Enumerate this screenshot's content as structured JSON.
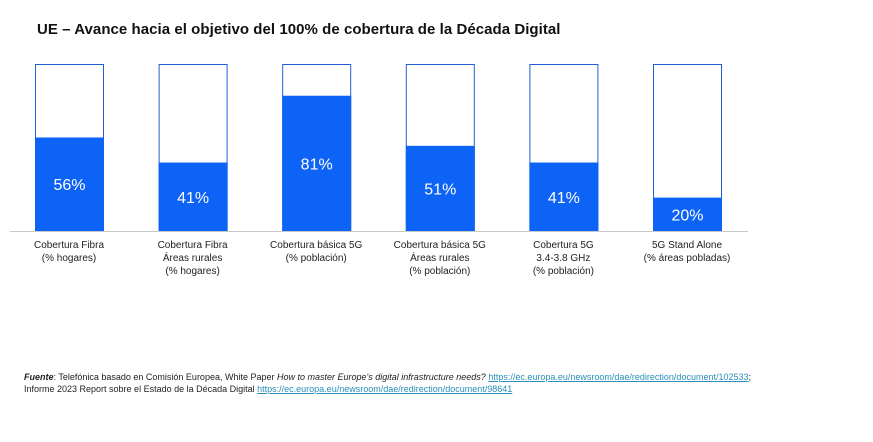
{
  "chart_data": {
    "type": "bar",
    "title": "UE – Avance hacia el objetivo del 100% de cobertura de la Década Digital",
    "categories": [
      [
        "Cobertura Fibra",
        "(% hogares)"
      ],
      [
        "Cobertura Fibra",
        "Áreas rurales",
        "(% hogares)"
      ],
      [
        "Cobertura básica 5G",
        "(% población)"
      ],
      [
        "Cobertura básica 5G",
        "Áreas rurales",
        "(% población)"
      ],
      [
        "Cobertura 5G",
        "3.4-3.8 GHz",
        "(% población)"
      ],
      [
        "5G Stand Alone",
        "(% áreas pobladas)"
      ]
    ],
    "values": [
      56,
      41,
      81,
      51,
      41,
      20
    ],
    "value_labels": [
      "56%",
      "41%",
      "81%",
      "51%",
      "41%",
      "20%"
    ],
    "ylim": [
      0,
      100
    ],
    "target": 100,
    "colors": {
      "fill": "#0d63f5",
      "outline": "#1f5fd6"
    }
  },
  "footer": {
    "source_label": "Fuente",
    "line1_text": ": Telefónica basado en Comisión Europea, White Paper ",
    "line1_italic": "How to master Europe's digital infrastructure needs?",
    "line1_link": "https://ec.europa.eu/newsroom/dae/redirection/document/102533",
    "line1_end": ";",
    "line2_text": "Informe 2023 Report sobre el Estado de la Década Digital ",
    "line2_link": "https://ec.europa.eu/newsroom/dae/redirection/document/98641"
  }
}
